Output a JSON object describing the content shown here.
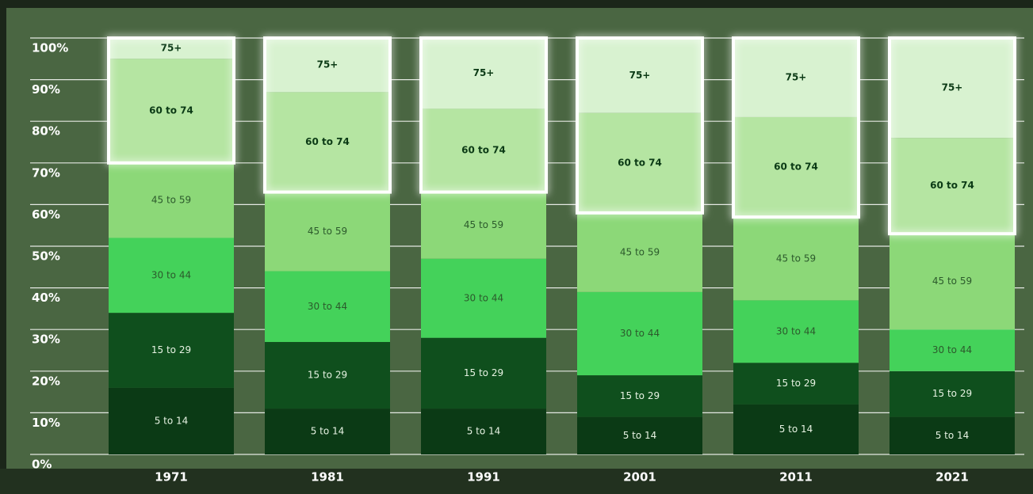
{
  "chart_data": {
    "type": "stacked_bar",
    "categories": [
      "1971",
      "1981",
      "1991",
      "2001",
      "2011",
      "2021"
    ],
    "series": [
      {
        "name": "5 to 14",
        "color": "#0b3a15",
        "values": [
          16,
          11,
          11,
          9,
          12,
          9
        ]
      },
      {
        "name": "15 to 29",
        "color": "#0f4f1d",
        "values": [
          18,
          16,
          17,
          10,
          10,
          11
        ]
      },
      {
        "name": "30 to 44",
        "color": "#44d25a",
        "values": [
          18,
          17,
          19,
          20,
          15,
          10
        ]
      },
      {
        "name": "45 to 59",
        "color": "#8cd878",
        "values": [
          18,
          19,
          16,
          19,
          20,
          23
        ]
      },
      {
        "name": "60 to 74",
        "color": "#b5e5a2",
        "values": [
          25,
          24,
          20,
          24,
          24,
          23
        ],
        "highlight": true
      },
      {
        "name": "75+",
        "color": "#d8f2d0",
        "values": [
          5,
          13,
          17,
          18,
          19,
          24
        ],
        "highlight": true
      }
    ],
    "ylim": [
      0,
      100
    ],
    "yticks": [
      {
        "value": 0,
        "label": "0%"
      },
      {
        "value": 10,
        "label": "10%"
      },
      {
        "value": 20,
        "label": "20%"
      },
      {
        "value": 30,
        "label": "30%"
      },
      {
        "value": 40,
        "label": "40%"
      },
      {
        "value": 50,
        "label": "50%"
      },
      {
        "value": 60,
        "label": "60%"
      },
      {
        "value": 70,
        "label": "70%"
      },
      {
        "value": 80,
        "label": "80%"
      },
      {
        "value": 90,
        "label": "90%"
      },
      {
        "value": 100,
        "label": "100%"
      }
    ],
    "grid": true
  }
}
